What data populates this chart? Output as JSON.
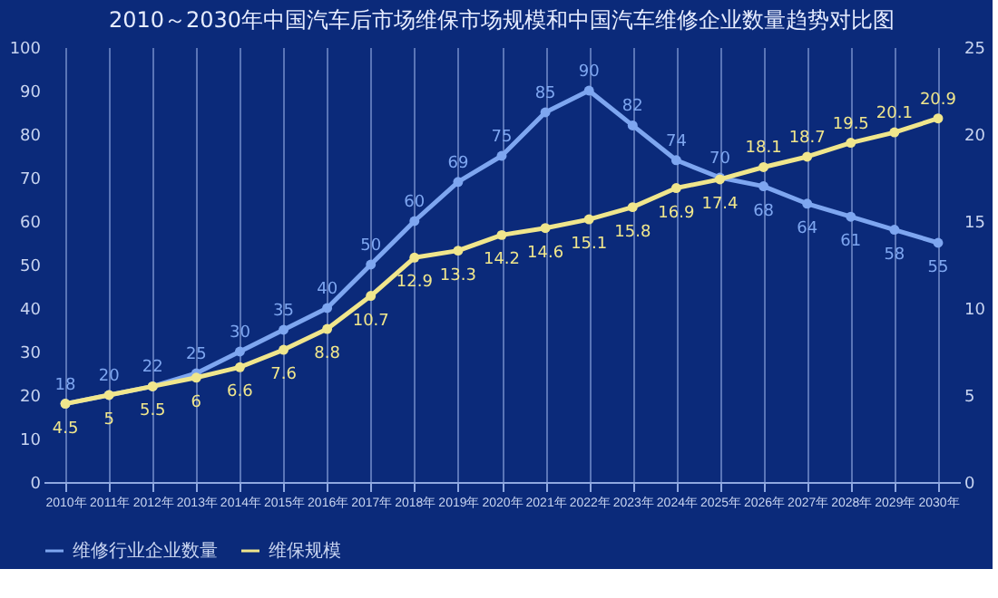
{
  "chart_data": {
    "type": "line",
    "title": "2010～2030年中国汽车后市场维保市场规模和中国汽车维修企业数量趋势对比图",
    "categories": [
      "2010年",
      "2011年",
      "2012年",
      "2013年",
      "2014年",
      "2015年",
      "2016年",
      "2017年",
      "2018年",
      "2019年",
      "2020年",
      "2021年",
      "2022年",
      "2023年",
      "2024年",
      "2025年",
      "2026年",
      "2027年",
      "2028年",
      "2029年",
      "2030年"
    ],
    "series": [
      {
        "name": "维修行业企业数量",
        "color": "#7ea6f0",
        "values": [
          18,
          20,
          22,
          25,
          30,
          35,
          40,
          50,
          60,
          69,
          75,
          85,
          90,
          82,
          74,
          70,
          68,
          64,
          61,
          58,
          55
        ]
      },
      {
        "name": "维保规模",
        "color": "#f0e68c",
        "axis": "y2",
        "values": [
          4.5,
          5,
          5.5,
          6,
          6.6,
          7.6,
          8.8,
          10.7,
          12.9,
          13.3,
          14.2,
          14.6,
          15.1,
          15.8,
          16.9,
          17.4,
          18.1,
          18.7,
          19.5,
          20.1,
          20.9
        ]
      }
    ],
    "ylim": [
      0,
      100
    ],
    "yticks": [
      0,
      10,
      20,
      30,
      40,
      50,
      60,
      70,
      80,
      90,
      100
    ],
    "y2lim": [
      0,
      25
    ],
    "y2ticks": [
      0,
      5,
      10,
      15,
      20,
      25
    ],
    "grid": "x",
    "legend": "bottom",
    "marker": "circle",
    "line_style": "solid",
    "data_labels": true
  }
}
